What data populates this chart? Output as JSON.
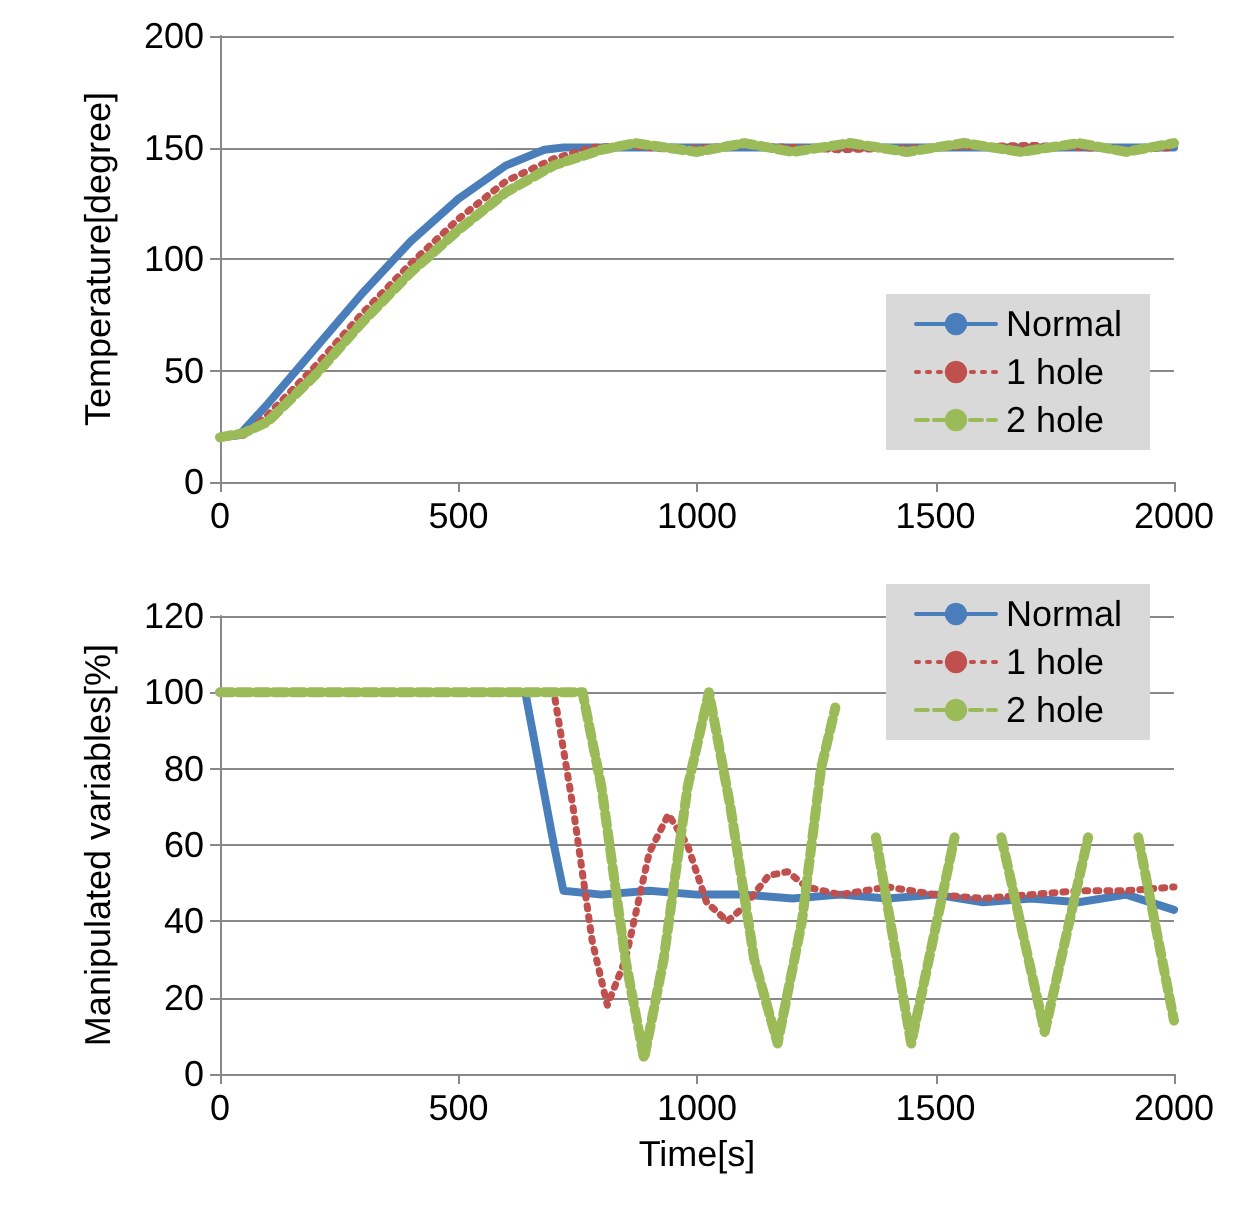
{
  "chart_data": [
    {
      "type": "line",
      "ylabel": "Temperature[degree]",
      "xlim": [
        0,
        2000
      ],
      "xticks": [
        0,
        500,
        1000,
        1500,
        2000
      ],
      "ylim": [
        0,
        200
      ],
      "yticks": [
        0,
        50,
        100,
        150,
        200
      ],
      "grid": "y",
      "legend": "bottom right",
      "marker": "none",
      "series": [
        {
          "name": "Normal",
          "color": "#4a7ebb",
          "line_style": "solid",
          "x": [
            0,
            40,
            100,
            200,
            300,
            400,
            500,
            600,
            680,
            720,
            800,
            1000,
            1500,
            2000
          ],
          "values": [
            20,
            21,
            35,
            60,
            85,
            108,
            127,
            142,
            149,
            150,
            150,
            150,
            150,
            150
          ]
        },
        {
          "name": "1 hole",
          "color": "#c0504d",
          "line_style": "dotted",
          "x": [
            0,
            50,
            100,
            200,
            300,
            400,
            500,
            600,
            700,
            780,
            850,
            950,
            1100,
            1300,
            1500,
            1700,
            1900,
            2000
          ],
          "values": [
            20,
            21,
            30,
            52,
            76,
            98,
            118,
            135,
            145,
            150,
            151,
            149,
            151,
            149,
            150,
            151,
            149,
            150
          ]
        },
        {
          "name": "2 hole",
          "color": "#9bbb59",
          "line_style": "dashed",
          "x": [
            0,
            50,
            100,
            200,
            300,
            400,
            500,
            600,
            700,
            800,
            870,
            1000,
            1100,
            1200,
            1320,
            1440,
            1560,
            1680,
            1800,
            1900,
            2000
          ],
          "values": [
            20,
            22,
            27,
            48,
            72,
            94,
            113,
            130,
            142,
            149,
            152,
            148,
            152,
            148,
            152,
            148,
            152,
            148,
            152,
            148,
            152
          ]
        }
      ]
    },
    {
      "type": "line",
      "xlabel": "Time[s]",
      "ylabel": "Manipulated variables[%]",
      "xlim": [
        0,
        2000
      ],
      "xticks": [
        0,
        500,
        1000,
        1500,
        2000
      ],
      "ylim": [
        0,
        120
      ],
      "yticks": [
        0,
        20,
        40,
        60,
        80,
        100,
        120
      ],
      "grid": "y",
      "legend": "top right",
      "marker": "none",
      "series": [
        {
          "name": "Normal",
          "color": "#4a7ebb",
          "line_style": "solid",
          "x": [
            0,
            640,
            700,
            720,
            800,
            900,
            1000,
            1100,
            1200,
            1300,
            1400,
            1500,
            1600,
            1700,
            1800,
            1900,
            2000
          ],
          "values": [
            100,
            100,
            60,
            48,
            47,
            48,
            47,
            47,
            46,
            47,
            46,
            47,
            45,
            46,
            45,
            47,
            43
          ]
        },
        {
          "name": "1 hole",
          "color": "#c0504d",
          "line_style": "dotted",
          "x": [
            0,
            700,
            740,
            780,
            812,
            850,
            900,
            940,
            980,
            1020,
            1064,
            1100,
            1150,
            1190,
            1230,
            1300,
            1400,
            1500,
            1600,
            1700,
            1800,
            1900,
            2000
          ],
          "values": [
            100,
            100,
            70,
            35,
            18,
            30,
            58,
            68,
            60,
            45,
            40,
            44,
            52,
            53,
            49,
            47,
            49,
            47,
            46,
            47,
            48,
            48,
            49
          ]
        },
        {
          "name": "2 hole",
          "color": "#9bbb59",
          "line_style": "dashed",
          "x": [
            0,
            760,
            800,
            850,
            889,
            930,
            980,
            1025,
            1070,
            1120,
            1169,
            1220,
            1260,
            1290,
            1320,
            1375,
            1449,
            1540,
            1590,
            1638,
            1729,
            1820,
            1870,
            1925,
            2000
          ],
          "values": [
            100,
            100,
            75,
            30,
            4,
            30,
            75,
            100,
            70,
            30,
            8,
            40,
            80,
            96,
            null,
            62,
            8,
            62,
            null,
            62,
            11,
            62,
            null,
            62,
            14
          ]
        }
      ]
    }
  ]
}
